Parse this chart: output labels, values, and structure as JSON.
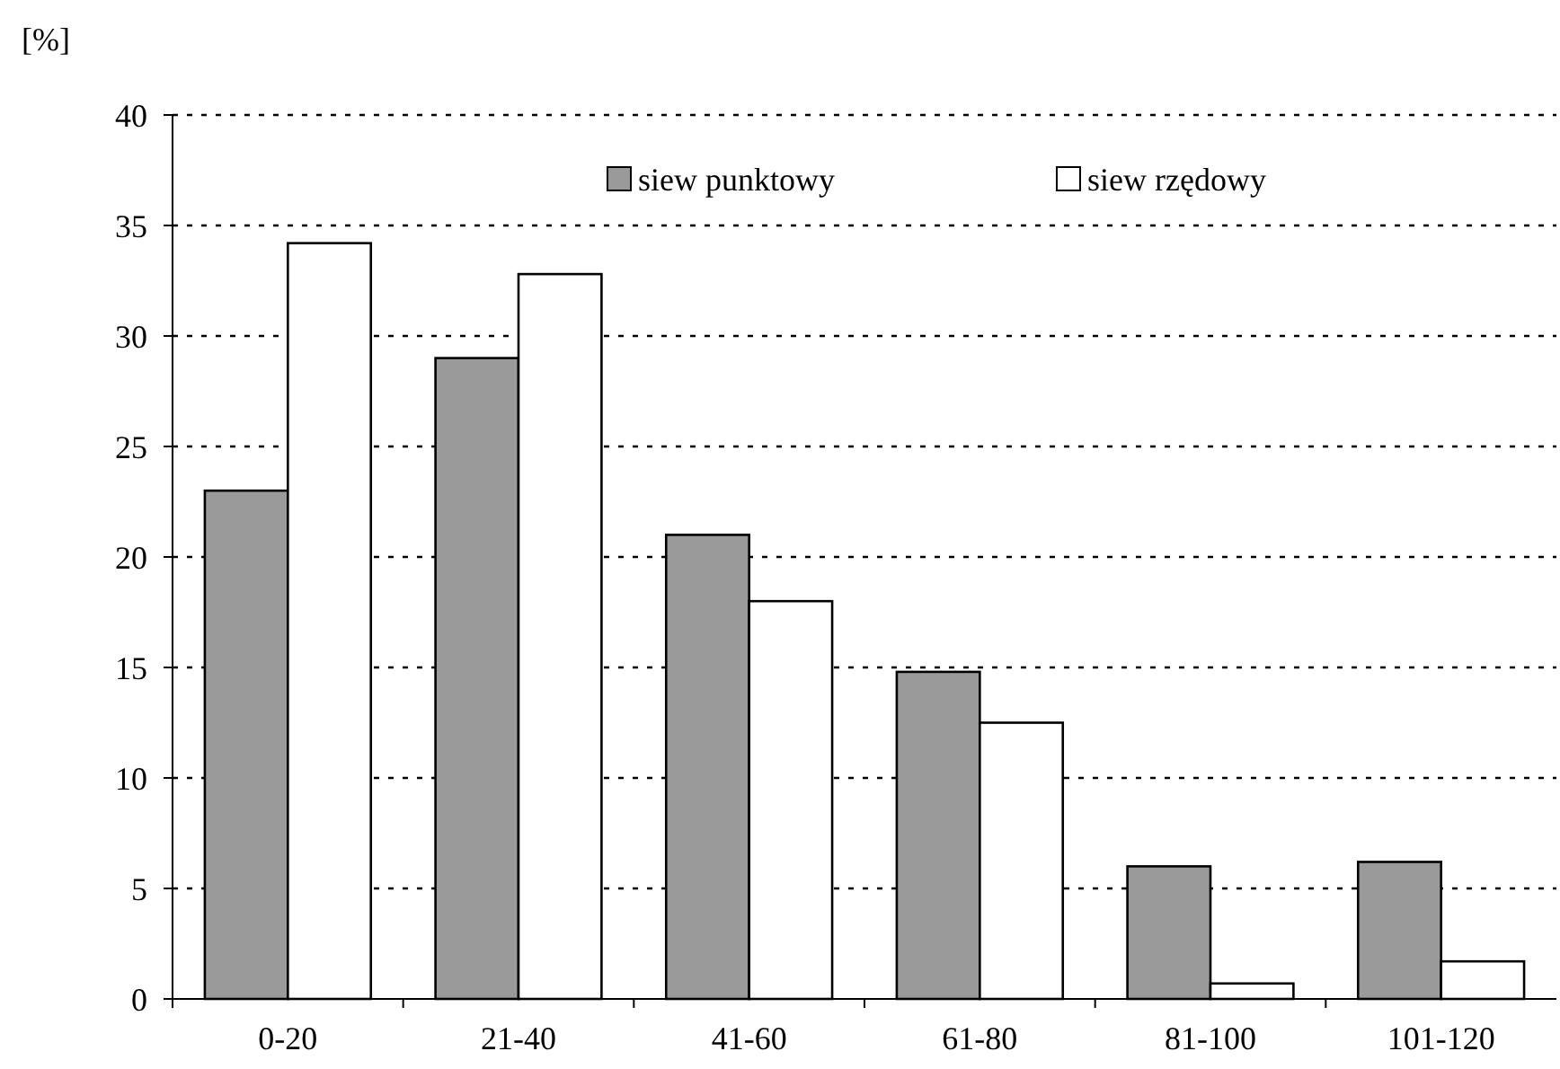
{
  "chart_data": {
    "type": "bar",
    "ylabel": "[%]",
    "categories": [
      "0-20",
      "21-40",
      "41-60",
      "61-80",
      "81-100",
      "101-120"
    ],
    "series": [
      {
        "name": "siew punktowy",
        "color": "#9a9a9a",
        "values": [
          23,
          29,
          21,
          14.8,
          6,
          6.2
        ]
      },
      {
        "name": "siew rzędowy",
        "color": "#ffffff",
        "values": [
          34.2,
          32.8,
          18,
          12.5,
          0.7,
          1.7
        ]
      }
    ],
    "ylim": [
      0,
      40
    ],
    "yticks": [
      0,
      5,
      10,
      15,
      20,
      25,
      30,
      35,
      40
    ],
    "grid": "y",
    "legend": "top"
  }
}
